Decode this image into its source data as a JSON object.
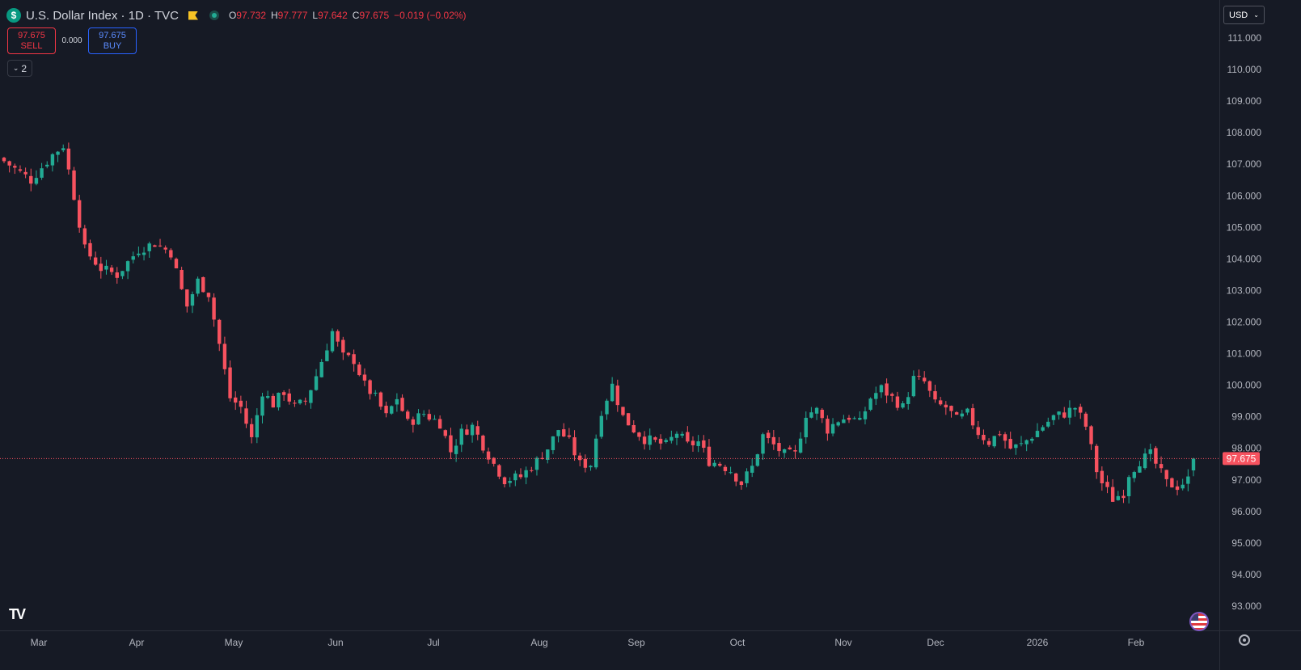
{
  "header": {
    "symbol_icon": "$",
    "title": "U.S. Dollar Index · 1D · TVC",
    "ohlc": {
      "open_label": "O",
      "open": "97.732",
      "high_label": "H",
      "high": "97.777",
      "low_label": "L",
      "low": "97.642",
      "close_label": "C",
      "close": "97.675",
      "change": "−0.019 (−0.02%)"
    }
  },
  "trade": {
    "sell_price": "97.675",
    "sell_label": "SELL",
    "spread": "0.000",
    "buy_price": "97.675",
    "buy_label": "BUY"
  },
  "indicators_toggle": {
    "count": "2"
  },
  "currency_selector": {
    "value": "USD"
  },
  "branding": {
    "logo": "TV"
  },
  "colors": {
    "up": "#22ab94",
    "down": "#f7525f",
    "background": "#161a25",
    "last_price": "#f7525f"
  },
  "chart_data": {
    "type": "candlestick",
    "ylim": [
      92.5,
      111.5
    ],
    "y_ticks": [
      "111.000",
      "110.000",
      "109.000",
      "108.000",
      "107.000",
      "106.000",
      "105.000",
      "104.000",
      "103.000",
      "102.000",
      "101.000",
      "100.000",
      "99.000",
      "98.000",
      "97.000",
      "96.000",
      "95.000",
      "94.000",
      "93.000"
    ],
    "x_labels": [
      "Mar",
      "Apr",
      "May",
      "Jun",
      "Jul",
      "Aug",
      "Sep",
      "Oct",
      "Nov",
      "Dec",
      "2026",
      "Feb"
    ],
    "last_price_label": "97.675",
    "last_price": 97.675,
    "anchors": [
      [
        0,
        107.1
      ],
      [
        5,
        106.5
      ],
      [
        9,
        107.3
      ],
      [
        11,
        107.6
      ],
      [
        13,
        106.0
      ],
      [
        15,
        104.3
      ],
      [
        18,
        103.7
      ],
      [
        21,
        103.5
      ],
      [
        25,
        104.3
      ],
      [
        28,
        104.5
      ],
      [
        31,
        104.2
      ],
      [
        33,
        103.0
      ],
      [
        34,
        102.5
      ],
      [
        36,
        103.3
      ],
      [
        38,
        102.9
      ],
      [
        40,
        101.3
      ],
      [
        42,
        99.6
      ],
      [
        44,
        99.3
      ],
      [
        46,
        98.3
      ],
      [
        48,
        99.8
      ],
      [
        50,
        99.4
      ],
      [
        52,
        99.8
      ],
      [
        54,
        99.3
      ],
      [
        56,
        99.5
      ],
      [
        58,
        100.3
      ],
      [
        61,
        101.7
      ],
      [
        63,
        100.9
      ],
      [
        65,
        100.8
      ],
      [
        67,
        100.0
      ],
      [
        69,
        99.6
      ],
      [
        71,
        99.0
      ],
      [
        73,
        99.6
      ],
      [
        75,
        98.8
      ],
      [
        78,
        99.1
      ],
      [
        81,
        98.8
      ],
      [
        83,
        97.9
      ],
      [
        85,
        98.5
      ],
      [
        87,
        98.7
      ],
      [
        89,
        98.1
      ],
      [
        91,
        97.5
      ],
      [
        93,
        97.0
      ],
      [
        96,
        97.1
      ],
      [
        99,
        97.6
      ],
      [
        101,
        98.0
      ],
      [
        103,
        98.6
      ],
      [
        105,
        98.2
      ],
      [
        107,
        97.5
      ],
      [
        109,
        97.5
      ],
      [
        111,
        99.2
      ],
      [
        113,
        100.0
      ],
      [
        115,
        99.0
      ],
      [
        117,
        98.6
      ],
      [
        119,
        98.3
      ],
      [
        121,
        98.2
      ],
      [
        123,
        98.1
      ],
      [
        125,
        98.5
      ],
      [
        127,
        98.1
      ],
      [
        129,
        98.2
      ],
      [
        131,
        97.6
      ],
      [
        133,
        97.5
      ],
      [
        135,
        97.3
      ],
      [
        137,
        96.9
      ],
      [
        139,
        97.4
      ],
      [
        141,
        98.4
      ],
      [
        143,
        98.1
      ],
      [
        145,
        97.8
      ],
      [
        147,
        97.8
      ],
      [
        149,
        99.1
      ],
      [
        151,
        99.2
      ],
      [
        153,
        98.6
      ],
      [
        155,
        98.9
      ],
      [
        157,
        99.0
      ],
      [
        159,
        98.8
      ],
      [
        161,
        99.6
      ],
      [
        163,
        99.9
      ],
      [
        165,
        99.6
      ],
      [
        167,
        99.3
      ],
      [
        169,
        100.2
      ],
      [
        171,
        100.1
      ],
      [
        173,
        99.4
      ],
      [
        175,
        99.3
      ],
      [
        177,
        98.9
      ],
      [
        179,
        99.1
      ],
      [
        181,
        98.5
      ],
      [
        183,
        98.2
      ],
      [
        185,
        98.5
      ],
      [
        187,
        98.0
      ],
      [
        189,
        98.1
      ],
      [
        191,
        98.4
      ],
      [
        193,
        98.7
      ],
      [
        195,
        99.0
      ],
      [
        197,
        99.1
      ],
      [
        199,
        99.3
      ],
      [
        201,
        98.7
      ],
      [
        203,
        97.3
      ],
      [
        204,
        96.9
      ],
      [
        206,
        96.4
      ],
      [
        208,
        96.6
      ],
      [
        209,
        97.2
      ],
      [
        211,
        97.6
      ],
      [
        213,
        97.8
      ],
      [
        215,
        97.2
      ],
      [
        216,
        96.9
      ],
      [
        218,
        96.8
      ],
      [
        220,
        97.0
      ],
      [
        221,
        97.675
      ]
    ],
    "candle_count": 222
  }
}
